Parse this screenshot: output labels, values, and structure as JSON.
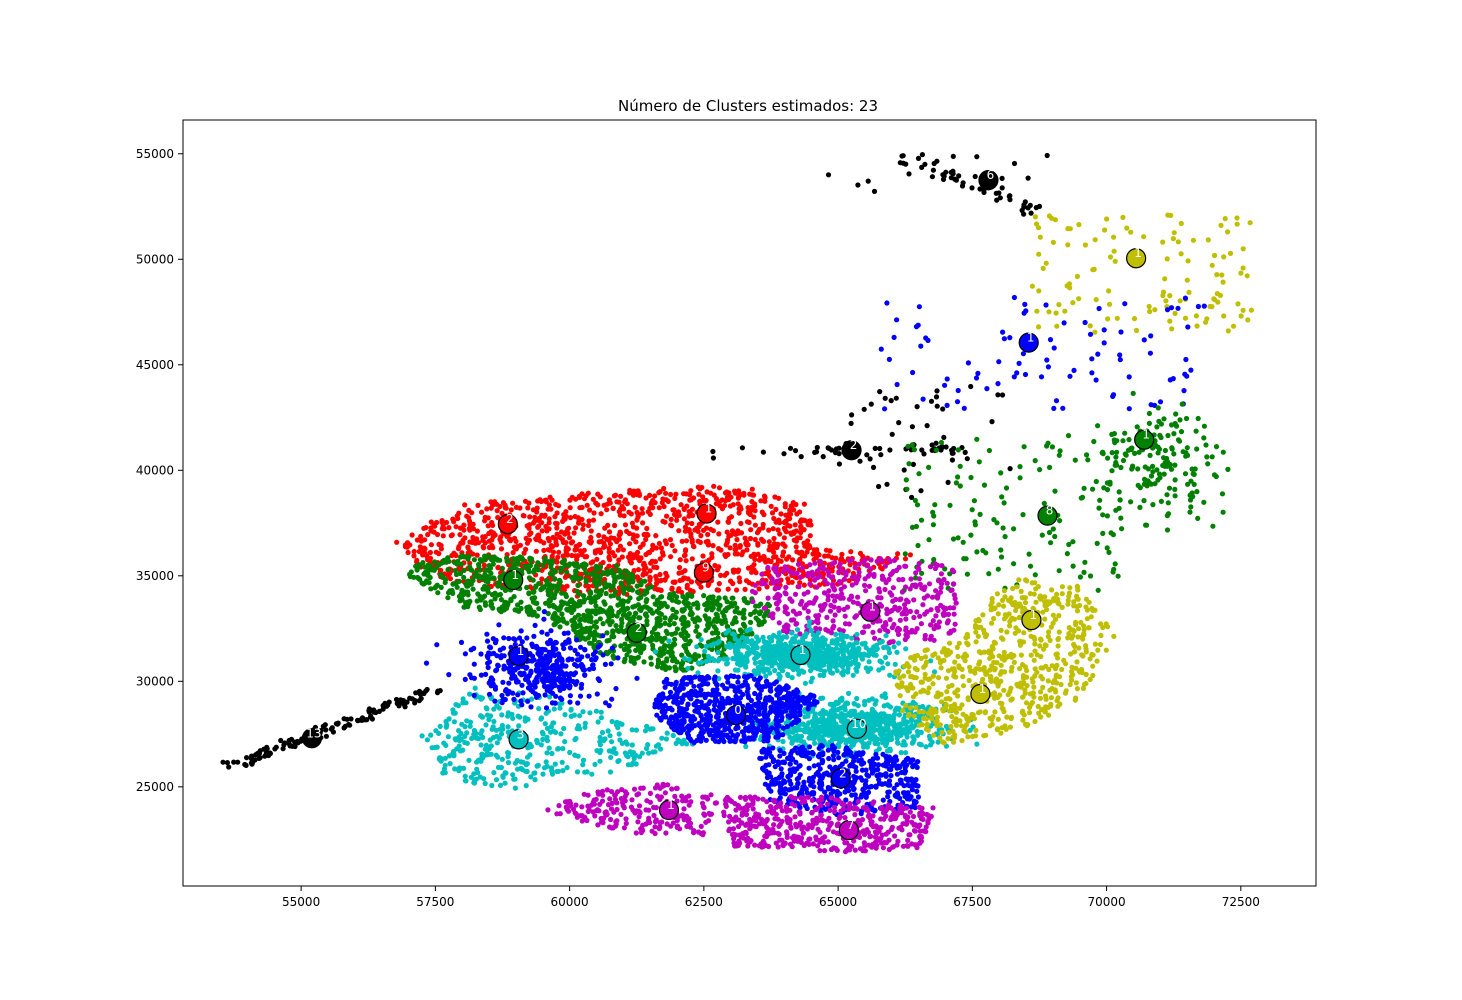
{
  "chart_data": {
    "type": "scatter",
    "title": "Número de Clusters estimados: 23",
    "xlabel": "",
    "ylabel": "",
    "xlim": [
      52800,
      73900
    ],
    "ylim": [
      20300,
      56600
    ],
    "xticks": [
      55000,
      57500,
      60000,
      62500,
      65000,
      67500,
      70000,
      72500
    ],
    "yticks": [
      25000,
      30000,
      35000,
      40000,
      45000,
      50000,
      55000
    ],
    "grid": false,
    "legend": "none",
    "colors": {
      "b": "#0000ff",
      "g": "#008000",
      "r": "#ff0000",
      "c": "#00bfbf",
      "m": "#bf00bf",
      "y": "#bfbf00",
      "k": "#000000"
    },
    "centers": [
      {
        "label": "6",
        "color": "k",
        "x": 67800,
        "y": 53750
      },
      {
        "label": "1",
        "color": "y",
        "x": 70550,
        "y": 50050
      },
      {
        "label": "1",
        "color": "b",
        "x": 68550,
        "y": 46050
      },
      {
        "label": "2",
        "color": "k",
        "x": 65250,
        "y": 40950
      },
      {
        "label": "1",
        "color": "g",
        "x": 70700,
        "y": 41450
      },
      {
        "label": "8",
        "color": "g",
        "x": 68900,
        "y": 37850
      },
      {
        "label": "2",
        "color": "r",
        "x": 58850,
        "y": 37450
      },
      {
        "label": "1",
        "color": "r",
        "x": 62550,
        "y": 37950
      },
      {
        "label": "9",
        "color": "r",
        "x": 62500,
        "y": 35150
      },
      {
        "label": "1",
        "color": "g",
        "x": 58950,
        "y": 34800
      },
      {
        "label": "1",
        "color": "m",
        "x": 65600,
        "y": 33300
      },
      {
        "label": "2",
        "color": "g",
        "x": 61250,
        "y": 32300
      },
      {
        "label": "1",
        "color": "y",
        "x": 68600,
        "y": 32900
      },
      {
        "label": "1",
        "color": "b",
        "x": 59050,
        "y": 31200
      },
      {
        "label": "1",
        "color": "c",
        "x": 64300,
        "y": 31250
      },
      {
        "label": "1",
        "color": "y",
        "x": 67650,
        "y": 29400
      },
      {
        "label": "0",
        "color": "b",
        "x": 63100,
        "y": 28400
      },
      {
        "label": "3",
        "color": "c",
        "x": 59050,
        "y": 27250
      },
      {
        "label": "10",
        "color": "c",
        "x": 65350,
        "y": 27750
      },
      {
        "label": "13",
        "color": "k",
        "x": 55200,
        "y": 27300
      },
      {
        "label": "2",
        "color": "b",
        "x": 65050,
        "y": 25400
      },
      {
        "label": "1",
        "color": "m",
        "x": 61850,
        "y": 23900
      },
      {
        "label": "7",
        "color": "m",
        "x": 65200,
        "y": 22950
      }
    ],
    "point_clouds": [
      {
        "color": "k",
        "n": 130,
        "shape": "line",
        "x1": 53700,
        "y1": 26000,
        "x2": 57500,
        "y2": 29600,
        "w": 380
      },
      {
        "color": "k",
        "n": 50,
        "shape": "line",
        "x1": 66200,
        "y1": 54900,
        "x2": 68800,
        "y2": 52200,
        "w": 500
      },
      {
        "color": "k",
        "n": 14,
        "shape": "box",
        "x1": 64800,
        "y1": 53000,
        "x2": 69000,
        "y2": 55000
      },
      {
        "color": "k",
        "n": 45,
        "shape": "line",
        "x1": 62800,
        "y1": 40800,
        "x2": 67200,
        "y2": 41000,
        "w": 500
      },
      {
        "color": "k",
        "n": 45,
        "shape": "box",
        "x1": 65000,
        "y1": 38500,
        "x2": 68300,
        "y2": 44000
      },
      {
        "color": "y",
        "n": 120,
        "shape": "box",
        "x1": 68600,
        "y1": 46500,
        "x2": 72700,
        "y2": 52100
      },
      {
        "color": "b",
        "n": 90,
        "shape": "box",
        "x1": 65800,
        "y1": 42800,
        "x2": 71900,
        "y2": 48200
      },
      {
        "color": "g",
        "n": 170,
        "shape": "blob",
        "cx": 71000,
        "cy": 40500,
        "rx": 1100,
        "ry": 2600
      },
      {
        "color": "g",
        "n": 150,
        "shape": "box",
        "x1": 66200,
        "y1": 34200,
        "x2": 70300,
        "y2": 41800
      },
      {
        "color": "r",
        "n": 1300,
        "shape": "poly",
        "pts": [
          [
            56700,
            36600
          ],
          [
            58000,
            38400
          ],
          [
            60500,
            39000
          ],
          [
            63000,
            39300
          ],
          [
            64500,
            38600
          ],
          [
            64500,
            36300
          ],
          [
            66500,
            36000
          ],
          [
            65000,
            34500
          ],
          [
            62000,
            34200
          ],
          [
            60000,
            34000
          ],
          [
            57500,
            34800
          ]
        ]
      },
      {
        "color": "g",
        "n": 1100,
        "shape": "poly",
        "pts": [
          [
            57000,
            35500
          ],
          [
            58000,
            36000
          ],
          [
            60000,
            35800
          ],
          [
            60900,
            35500
          ],
          [
            61800,
            34200
          ],
          [
            64000,
            33800
          ],
          [
            63500,
            32500
          ],
          [
            63000,
            31200
          ],
          [
            62000,
            30400
          ],
          [
            60800,
            31000
          ],
          [
            59500,
            33000
          ],
          [
            58000,
            33500
          ],
          [
            57000,
            35000
          ]
        ]
      },
      {
        "color": "m",
        "n": 420,
        "shape": "poly",
        "pts": [
          [
            63500,
            35400
          ],
          [
            65500,
            35900
          ],
          [
            67200,
            35500
          ],
          [
            67200,
            32000
          ],
          [
            65800,
            31800
          ],
          [
            64000,
            32300
          ],
          [
            63300,
            33800
          ]
        ]
      },
      {
        "color": "c",
        "n": 650,
        "shape": "blob",
        "cx": 64300,
        "cy": 31300,
        "rx": 1700,
        "ry": 1000
      },
      {
        "color": "c",
        "n": 700,
        "shape": "blob",
        "cx": 65300,
        "cy": 27900,
        "rx": 1600,
        "ry": 1200
      },
      {
        "color": "c",
        "n": 380,
        "shape": "poly",
        "pts": [
          [
            57200,
            27500
          ],
          [
            58200,
            29700
          ],
          [
            59700,
            29300
          ],
          [
            61200,
            28100
          ],
          [
            62500,
            27200
          ],
          [
            61000,
            25800
          ],
          [
            59000,
            24900
          ],
          [
            57700,
            25300
          ]
        ]
      },
      {
        "color": "b",
        "n": 400,
        "shape": "blob",
        "cx": 59400,
        "cy": 30700,
        "rx": 1300,
        "ry": 1700
      },
      {
        "color": "b",
        "n": 650,
        "shape": "poly",
        "pts": [
          [
            61800,
            30200
          ],
          [
            63500,
            30300
          ],
          [
            64700,
            29200
          ],
          [
            63900,
            27200
          ],
          [
            62300,
            27000
          ],
          [
            61500,
            28500
          ]
        ]
      },
      {
        "color": "b",
        "n": 500,
        "shape": "poly",
        "pts": [
          [
            63500,
            26800
          ],
          [
            64800,
            27000
          ],
          [
            66500,
            26300
          ],
          [
            66500,
            24000
          ],
          [
            65000,
            23600
          ],
          [
            63700,
            24300
          ]
        ]
      },
      {
        "color": "y",
        "n": 650,
        "shape": "poly",
        "pts": [
          [
            66000,
            31000
          ],
          [
            67300,
            32000
          ],
          [
            68200,
            35100
          ],
          [
            69500,
            34600
          ],
          [
            70200,
            32000
          ],
          [
            69300,
            28500
          ],
          [
            68500,
            27800
          ],
          [
            67000,
            26900
          ],
          [
            66200,
            28500
          ]
        ]
      },
      {
        "color": "m",
        "n": 220,
        "shape": "poly",
        "pts": [
          [
            60200,
            24800
          ],
          [
            62000,
            25200
          ],
          [
            62800,
            24500
          ],
          [
            62500,
            22700
          ],
          [
            61200,
            22800
          ],
          [
            59500,
            23800
          ]
        ]
      },
      {
        "color": "m",
        "n": 450,
        "shape": "poly",
        "pts": [
          [
            62800,
            24500
          ],
          [
            64500,
            24600
          ],
          [
            66800,
            24000
          ],
          [
            66600,
            22100
          ],
          [
            65000,
            21900
          ],
          [
            63000,
            22200
          ]
        ]
      }
    ]
  }
}
